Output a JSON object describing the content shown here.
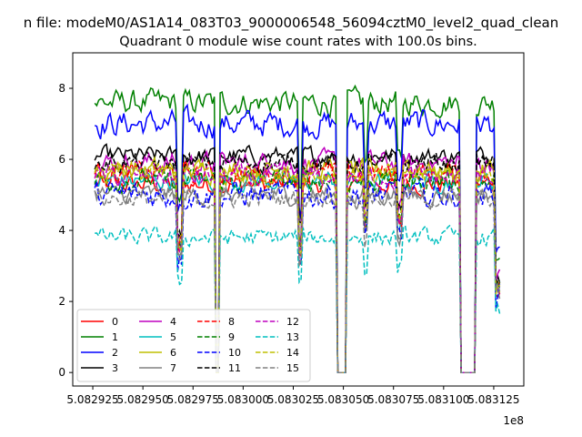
{
  "suptitle": "n file: modeM0/AS1A14_083T03_9000006548_56094cztM0_level2_quad_clean",
  "chart_data": {
    "type": "line",
    "title": "Quadrant 0 module wise count rates with 100.0s bins.",
    "xlabel": "",
    "ylabel": "",
    "x_offset_label": "1e8",
    "xlim": [
      5.082915,
      5.08314
    ],
    "ylim": [
      -0.38,
      9.0
    ],
    "x_ticks": [
      5.082925,
      5.08295,
      5.082975,
      5.083,
      5.083025,
      5.08305,
      5.083075,
      5.0831,
      5.083125
    ],
    "x_tick_labels": [
      "5.082925",
      "5.082950",
      "5.082975",
      "5.083000",
      "5.083025",
      "5.083050",
      "5.083075",
      "5.083100",
      "5.083125"
    ],
    "y_ticks": [
      0,
      2,
      4,
      6,
      8
    ],
    "y_tick_labels": [
      "0",
      "2",
      "4",
      "6",
      "8"
    ],
    "x_range": [
      5.082926,
      5.083128
    ],
    "gaps": [
      {
        "start": 5.0829865,
        "end": 5.0829885
      },
      {
        "start": 5.0830465,
        "end": 5.083052
      },
      {
        "start": 5.0831085,
        "end": 5.083116
      }
    ],
    "dips": [
      {
        "x": 5.0829685,
        "drop": 0.35
      },
      {
        "x": 5.0830285,
        "drop": 0.35
      },
      {
        "x": 5.083061,
        "drop": 0.22
      },
      {
        "x": 5.083078,
        "drop": 0.22
      },
      {
        "x": 5.083127,
        "drop": 0.55
      }
    ],
    "legend_position": "lower-left",
    "grid": false,
    "series": [
      {
        "name": "0",
        "color": "#ff0000",
        "dash": "solid",
        "level": 5.3,
        "noise": 0.22
      },
      {
        "name": "1",
        "color": "#008000",
        "dash": "solid",
        "level": 7.6,
        "noise": 0.28
      },
      {
        "name": "2",
        "color": "#0000ff",
        "dash": "solid",
        "level": 7.0,
        "noise": 0.3
      },
      {
        "name": "3",
        "color": "#000000",
        "dash": "solid",
        "level": 6.1,
        "noise": 0.2
      },
      {
        "name": "4",
        "color": "#bf00bf",
        "dash": "solid",
        "level": 5.9,
        "noise": 0.25
      },
      {
        "name": "5",
        "color": "#00bfbf",
        "dash": "solid",
        "level": 5.4,
        "noise": 0.22
      },
      {
        "name": "6",
        "color": "#bfbf00",
        "dash": "solid",
        "level": 5.7,
        "noise": 0.25
      },
      {
        "name": "7",
        "color": "#808080",
        "dash": "solid",
        "level": 5.0,
        "noise": 0.22
      },
      {
        "name": "8",
        "color": "#ff0000",
        "dash": "dashed",
        "level": 5.6,
        "noise": 0.25
      },
      {
        "name": "9",
        "color": "#008000",
        "dash": "dashed",
        "level": 5.4,
        "noise": 0.25
      },
      {
        "name": "10",
        "color": "#0000ff",
        "dash": "dashed",
        "level": 5.0,
        "noise": 0.3
      },
      {
        "name": "11",
        "color": "#000000",
        "dash": "dashed",
        "level": 5.9,
        "noise": 0.22
      },
      {
        "name": "12",
        "color": "#bf00bf",
        "dash": "dashed",
        "level": 5.5,
        "noise": 0.25
      },
      {
        "name": "13",
        "color": "#00bfbf",
        "dash": "dashed",
        "level": 3.8,
        "noise": 0.2
      },
      {
        "name": "14",
        "color": "#bfbf00",
        "dash": "dashed",
        "level": 5.6,
        "noise": 0.25
      },
      {
        "name": "15",
        "color": "#808080",
        "dash": "dashed",
        "level": 4.9,
        "noise": 0.22
      }
    ]
  }
}
